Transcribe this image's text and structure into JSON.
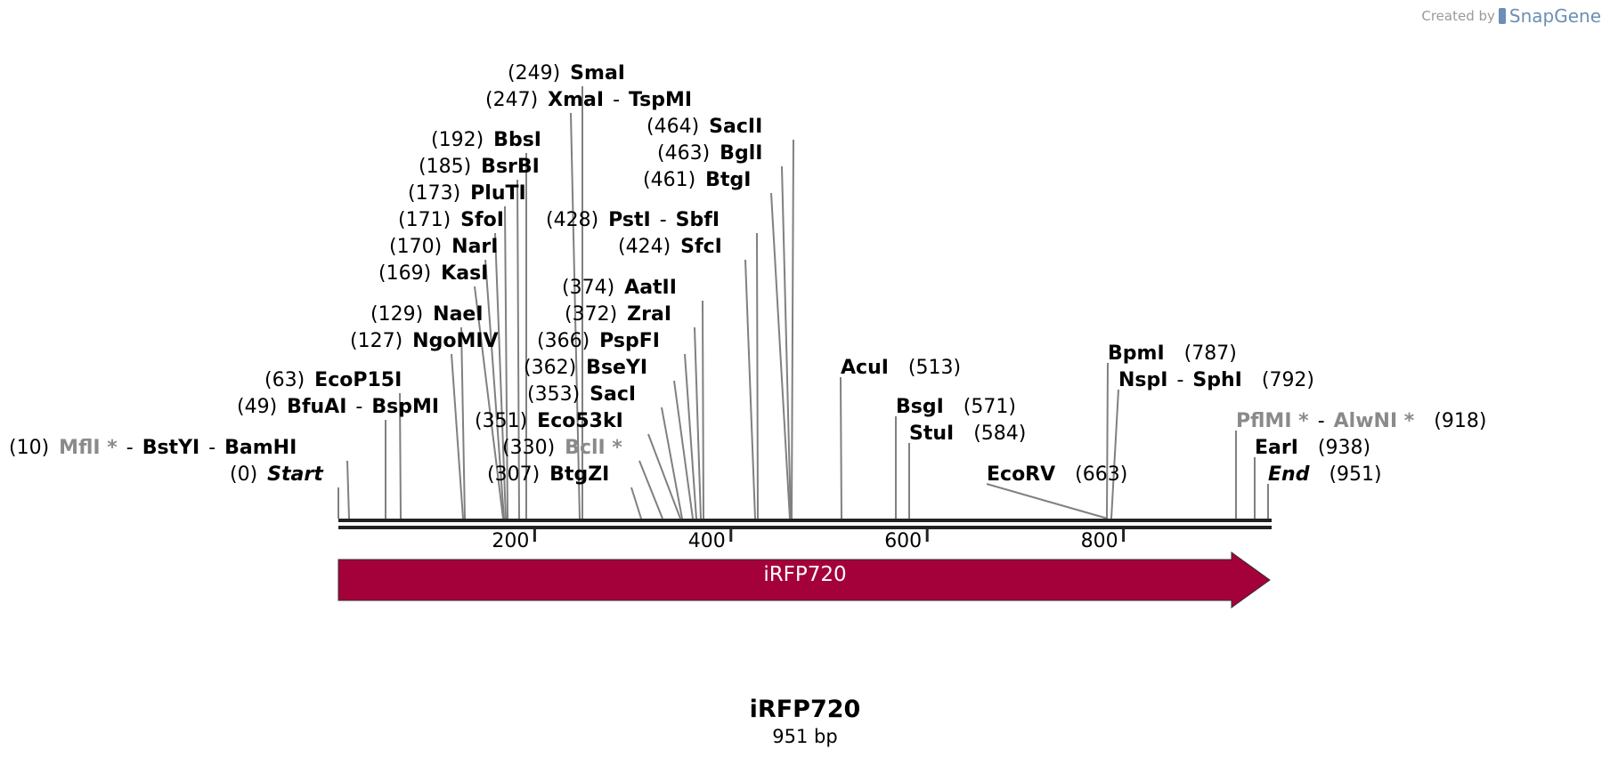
{
  "credit": {
    "prefix": "Created by",
    "brand": "SnapGene"
  },
  "sequence": {
    "name": "iRFP720",
    "length_label": "951 bp",
    "length": 951
  },
  "ruler": {
    "ticks": [
      "200",
      "400",
      "600",
      "800"
    ]
  },
  "feature": {
    "name": "iRFP720",
    "color": "#a4003a",
    "start": 1,
    "end": 951,
    "direction": "forward"
  },
  "sites": [
    {
      "pos": "(249)",
      "names": [
        "SmaI"
      ]
    },
    {
      "pos": "(247)",
      "names": [
        "XmaI",
        "TspMI"
      ]
    },
    {
      "pos": "(192)",
      "names": [
        "BbsI"
      ]
    },
    {
      "pos": "(185)",
      "names": [
        "BsrBI"
      ]
    },
    {
      "pos": "(173)",
      "names": [
        "PluTI"
      ]
    },
    {
      "pos": "(171)",
      "names": [
        "SfoI"
      ]
    },
    {
      "pos": "(170)",
      "names": [
        "NarI"
      ]
    },
    {
      "pos": "(169)",
      "names": [
        "KasI"
      ]
    },
    {
      "pos": "(129)",
      "names": [
        "NaeI"
      ]
    },
    {
      "pos": "(127)",
      "names": [
        "NgoMIV"
      ]
    },
    {
      "pos": "(63)",
      "names": [
        "EcoP15I"
      ]
    },
    {
      "pos": "(49)",
      "names": [
        "BfuAI",
        "BspMI"
      ]
    },
    {
      "pos": "(10)",
      "names": [
        "MflI *",
        "BstYI",
        "BamHI"
      ],
      "grey": [
        true,
        false,
        false
      ]
    },
    {
      "pos": "(0)",
      "names": [
        "Start"
      ],
      "italic": true
    },
    {
      "pos": "(464)",
      "names": [
        "SacII"
      ]
    },
    {
      "pos": "(463)",
      "names": [
        "BglI"
      ]
    },
    {
      "pos": "(461)",
      "names": [
        "BtgI"
      ]
    },
    {
      "pos": "(428)",
      "names": [
        "PstI",
        "SbfI"
      ]
    },
    {
      "pos": "(424)",
      "names": [
        "SfcI"
      ]
    },
    {
      "pos": "(374)",
      "names": [
        "AatII"
      ]
    },
    {
      "pos": "(372)",
      "names": [
        "ZraI"
      ]
    },
    {
      "pos": "(366)",
      "names": [
        "PspFI"
      ]
    },
    {
      "pos": "(362)",
      "names": [
        "BseYI"
      ]
    },
    {
      "pos": "(353)",
      "names": [
        "SacI"
      ]
    },
    {
      "pos": "(351)",
      "names": [
        "Eco53kI"
      ]
    },
    {
      "pos": "(330)",
      "names": [
        "BclI *"
      ],
      "grey": [
        true
      ]
    },
    {
      "pos": "(307)",
      "names": [
        "BtgZI"
      ]
    },
    {
      "pos": "(513)",
      "names": [
        "AcuI"
      ]
    },
    {
      "pos": "(571)",
      "names": [
        "BsgI"
      ]
    },
    {
      "pos": "(584)",
      "names": [
        "StuI"
      ]
    },
    {
      "pos": "(663)",
      "names": [
        "EcoRV"
      ]
    },
    {
      "pos": "(787)",
      "names": [
        "BpmI"
      ]
    },
    {
      "pos": "(792)",
      "names": [
        "NspI",
        "SphI"
      ]
    },
    {
      "pos": "(918)",
      "names": [
        "PflMI *",
        "AlwNI *"
      ],
      "grey": [
        true,
        true
      ]
    },
    {
      "pos": "(938)",
      "names": [
        "EarI"
      ]
    },
    {
      "pos": "(951)",
      "names": [
        "End"
      ],
      "italic": true
    }
  ]
}
